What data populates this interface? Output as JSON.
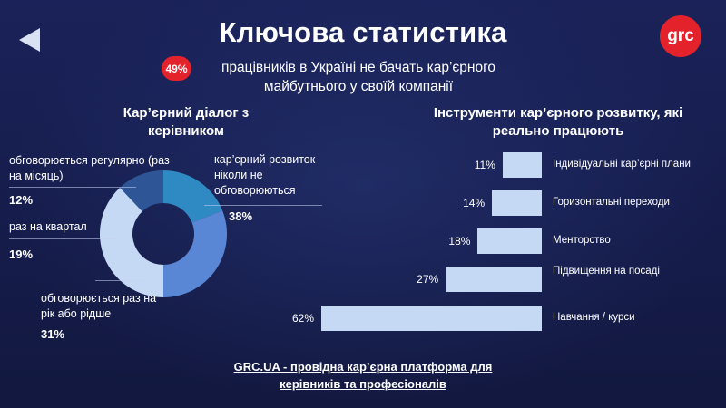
{
  "header": {
    "title": "Ключова статистика",
    "logo_text": "grc",
    "badge": "49%",
    "headline": "працівників в Україні не бачать кар’єрного майбутнього у своїй компанії"
  },
  "colors": {
    "accent_red": "#e3222b",
    "background": "#151c4a",
    "donut": [
      "#2e5596",
      "#2f8ac4",
      "#5a86d6",
      "#c5d9f5"
    ],
    "bar": "#c5d9f5"
  },
  "donut_section": {
    "title": "Кар’єрний діалог з керівником",
    "labels": [
      {
        "label": "обговорюється регулярно (раз на місяць)",
        "pct": "12%"
      },
      {
        "label": "раз на квартал",
        "pct": "19%"
      },
      {
        "label": "обговорюється раз на рік або рідше",
        "pct": "31%"
      },
      {
        "label": "кар’єрний розвиток ніколи не обговорюються",
        "pct": "38%"
      }
    ]
  },
  "bars_section": {
    "title": "Інструменти кар’єрного розвитку, які реально працюють",
    "items": [
      {
        "value_label": "11%",
        "label": "Індивідуальні кар’єрні плани"
      },
      {
        "value_label": "14%",
        "label": "Горизонтальні переходи"
      },
      {
        "value_label": "18%",
        "label": "Менторство"
      },
      {
        "value_label": "27%",
        "label": "Підвищення на посаді"
      },
      {
        "value_label": "62%",
        "label": "Навчання / курси"
      }
    ]
  },
  "footer": {
    "line1": "GRC.UA - провідна кар’єрна платформа для",
    "line2": "керівників та професіоналів"
  },
  "chart_data": [
    {
      "type": "pie",
      "title": "Кар’єрний діалог з керівником",
      "categories": [
        "обговорюється регулярно (раз на місяць)",
        "раз на квартал",
        "обговорюється раз на рік або рідше",
        "кар’єрний розвиток ніколи не обговорюються"
      ],
      "values": [
        12,
        19,
        31,
        38
      ],
      "donut": true
    },
    {
      "type": "bar",
      "orientation": "horizontal",
      "title": "Інструменти кар’єрного розвитку, які реально працюють",
      "categories": [
        "Індивідуальні кар’єрні плани",
        "Горизонтальні переходи",
        "Менторство",
        "Підвищення на посаді",
        "Навчання / курси"
      ],
      "values": [
        11,
        14,
        18,
        27,
        62
      ]
    }
  ]
}
